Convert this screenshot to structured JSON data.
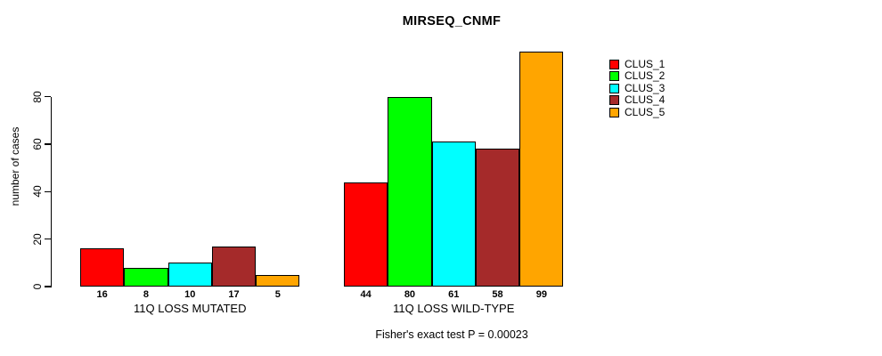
{
  "chart_data": {
    "type": "bar",
    "title": "MIRSEQ_CNMF",
    "ylabel": "number of cases",
    "xlabel": "",
    "yticks": [
      0,
      20,
      40,
      60,
      80
    ],
    "ylim": [
      0,
      102
    ],
    "grid": false,
    "legend_position": "top-right",
    "bar_value_labels_shown": true,
    "categories": [
      "CLUS_1",
      "CLUS_2",
      "CLUS_3",
      "CLUS_4",
      "CLUS_5"
    ],
    "colors": [
      "#ff0000",
      "#00ff00",
      "#00ffff",
      "#a52a2a",
      "#ffa500"
    ],
    "groups": [
      {
        "label": "11Q LOSS MUTATED",
        "values": [
          16,
          8,
          10,
          17,
          5
        ]
      },
      {
        "label": "11Q LOSS WILD-TYPE",
        "values": [
          44,
          80,
          61,
          58,
          99
        ]
      }
    ],
    "series": [
      {
        "name": "CLUS_1",
        "color": "#ff0000",
        "values": [
          16,
          44
        ]
      },
      {
        "name": "CLUS_2",
        "color": "#00ff00",
        "values": [
          8,
          80
        ]
      },
      {
        "name": "CLUS_3",
        "color": "#00ffff",
        "values": [
          10,
          61
        ]
      },
      {
        "name": "CLUS_4",
        "color": "#a52a2a",
        "values": [
          17,
          58
        ]
      },
      {
        "name": "CLUS_5",
        "color": "#ffa500",
        "values": [
          5,
          99
        ]
      }
    ],
    "annotation": "Fisher's exact test P = 0.00023"
  }
}
